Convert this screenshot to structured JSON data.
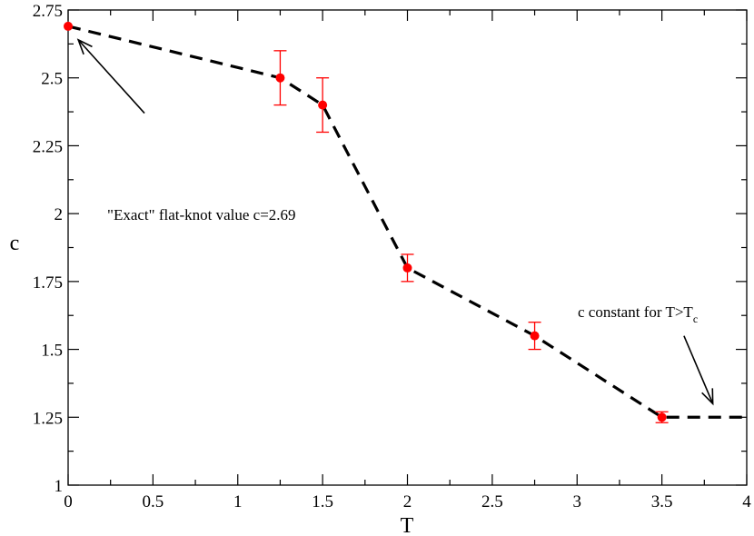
{
  "chart_data": {
    "type": "scatter",
    "title": "",
    "xlabel": "T",
    "ylabel": "c",
    "xlim": [
      0,
      4
    ],
    "ylim": [
      1,
      2.75
    ],
    "x_ticks": [
      0,
      0.5,
      1,
      1.5,
      2,
      2.5,
      3,
      3.5,
      4
    ],
    "x_tick_labels": [
      "0",
      "0.5",
      "1",
      "1.5",
      "2",
      "2.5",
      "3",
      "3.5",
      "4"
    ],
    "y_ticks": [
      1,
      1.25,
      1.5,
      1.75,
      2,
      2.25,
      2.5,
      2.75
    ],
    "y_tick_labels": [
      "1",
      "1.25",
      "1.5",
      "1.75",
      "2",
      "2.25",
      "2.5",
      "2.75"
    ],
    "grid": false,
    "series": [
      {
        "type": "scatter",
        "color": "#ff0000",
        "x": [
          0,
          1.25,
          1.5,
          2,
          2.75,
          3.5
        ],
        "y": [
          2.69,
          2.5,
          2.4,
          1.8,
          1.55,
          1.25
        ],
        "yerr": [
          0,
          0.1,
          0.1,
          0.05,
          0.05,
          0.02
        ]
      },
      {
        "type": "line",
        "style": "dashed",
        "color": "#000000",
        "x": [
          0,
          1.25,
          1.5,
          2,
          2.75,
          3.5,
          4
        ],
        "y": [
          2.69,
          2.5,
          2.4,
          1.8,
          1.55,
          1.25,
          1.25
        ]
      }
    ],
    "annotations": [
      {
        "text": "\"Exact\" flat-knot value c=2.69",
        "arrow_to": [
          0.06,
          2.64
        ],
        "arrow_from": [
          0.45,
          2.37
        ]
      },
      {
        "text": "c constant for T>T",
        "subscript": "c",
        "arrow_to": [
          3.8,
          1.3
        ],
        "arrow_from": [
          3.63,
          1.55
        ]
      }
    ]
  }
}
